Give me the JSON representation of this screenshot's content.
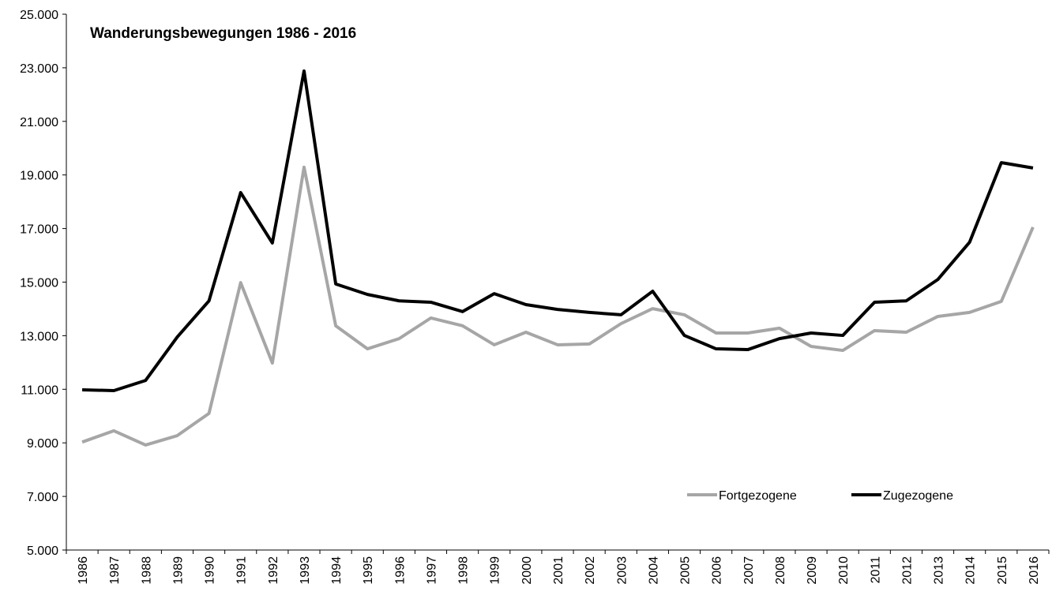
{
  "chart_data": {
    "type": "line",
    "title": "Wanderungsbewegungen 1986 - 2016",
    "categories": [
      "1986",
      "1987",
      "1988",
      "1989",
      "1990",
      "1991",
      "1992",
      "1993",
      "1994",
      "1995",
      "1996",
      "1997",
      "1998",
      "1999",
      "2000",
      "2001",
      "2002",
      "2003",
      "2004",
      "2005",
      "2006",
      "2007",
      "2008",
      "2009",
      "2010",
      "2011",
      "2012",
      "2013",
      "2014",
      "2015",
      "2016"
    ],
    "series": [
      {
        "name": "Fortgezogene",
        "color": "#a6a6a6",
        "values": [
          9030,
          9450,
          8920,
          9270,
          10100,
          14980,
          11980,
          19290,
          13370,
          12510,
          12890,
          13660,
          13370,
          12660,
          13130,
          12660,
          12690,
          13450,
          14010,
          13780,
          13100,
          13100,
          13280,
          12600,
          12450,
          13190,
          13130,
          13720,
          13870,
          14280,
          17050
        ]
      },
      {
        "name": "Zugezogene",
        "color": "#000000",
        "values": [
          10980,
          10950,
          11330,
          12950,
          14300,
          18340,
          16460,
          22880,
          14930,
          14540,
          14300,
          14250,
          13900,
          14570,
          14160,
          13980,
          13870,
          13780,
          14660,
          13010,
          12510,
          12480,
          12890,
          13100,
          13010,
          14250,
          14300,
          15100,
          16490,
          19460,
          19260
        ]
      }
    ],
    "ylim": [
      5000,
      25000
    ],
    "yticks": [
      {
        "value": 5000,
        "label": "5.000"
      },
      {
        "value": 7000,
        "label": "7.000"
      },
      {
        "value": 9000,
        "label": "9.000"
      },
      {
        "value": 11000,
        "label": "11.000"
      },
      {
        "value": 13000,
        "label": "13.000"
      },
      {
        "value": 15000,
        "label": "15.000"
      },
      {
        "value": 17000,
        "label": "17.000"
      },
      {
        "value": 19000,
        "label": "19.000"
      },
      {
        "value": 21000,
        "label": "21.000"
      },
      {
        "value": 23000,
        "label": "23.000"
      },
      {
        "value": 25000,
        "label": "25.000"
      }
    ],
    "grid": false,
    "legend": "lower right"
  }
}
